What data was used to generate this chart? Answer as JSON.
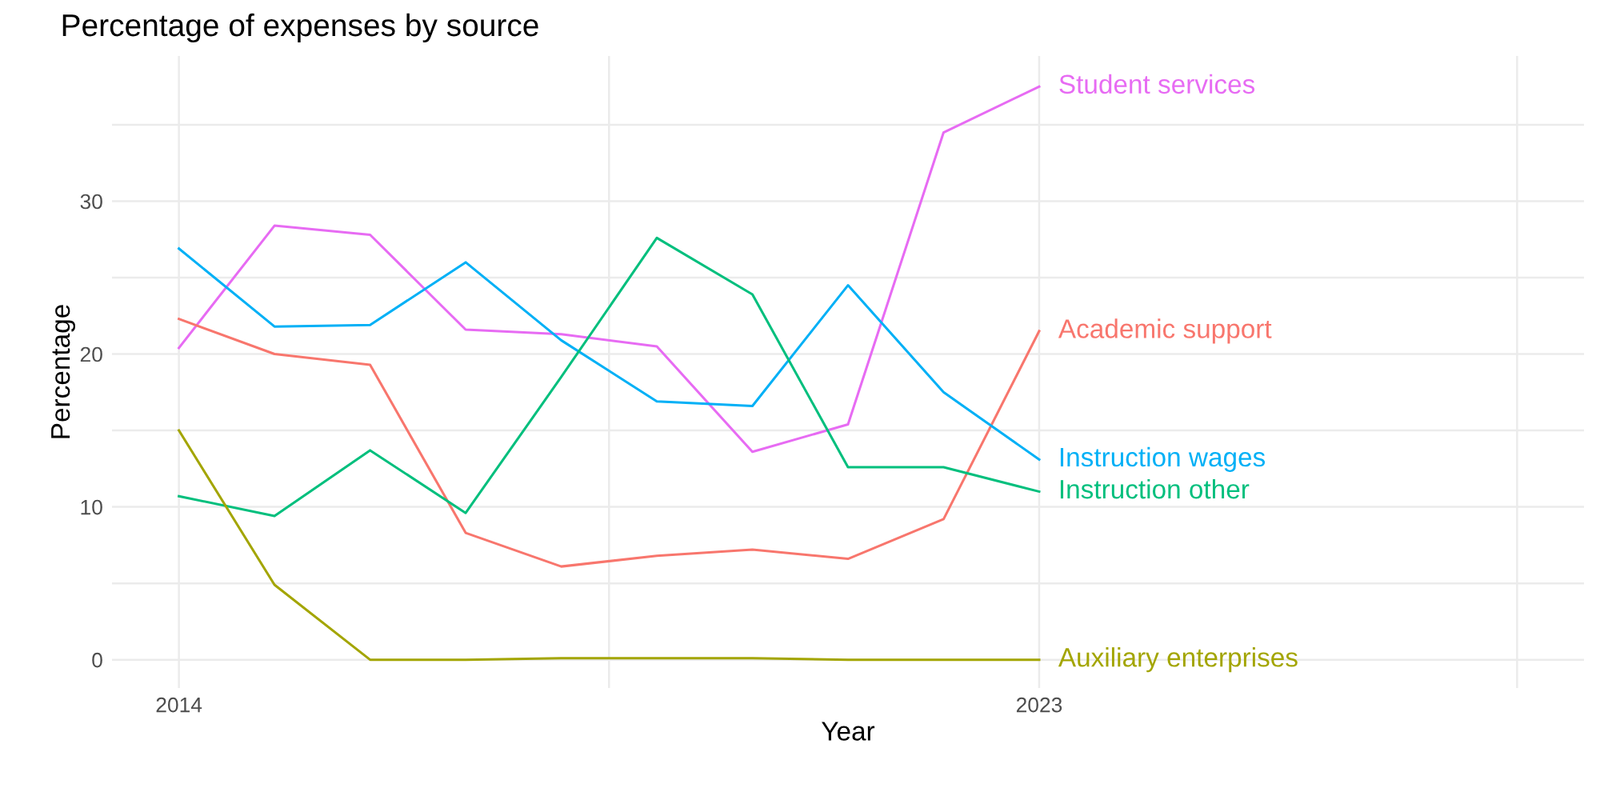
{
  "chart_data": {
    "type": "line",
    "title": "Percentage of expenses by source",
    "xlabel": "Year",
    "ylabel": "Percentage",
    "x": [
      2014,
      2015,
      2016,
      2017,
      2018,
      2019,
      2020,
      2021,
      2022,
      2023
    ],
    "series": [
      {
        "name": "Student services",
        "color": "#e76bf3",
        "values": [
          20.4,
          28.4,
          27.8,
          21.6,
          21.3,
          20.5,
          13.6,
          15.4,
          34.5,
          37.5
        ]
      },
      {
        "name": "Academic support",
        "color": "#f8766d",
        "values": [
          22.3,
          20.0,
          19.3,
          8.3,
          6.1,
          6.8,
          7.2,
          6.6,
          9.2,
          21.5
        ]
      },
      {
        "name": "Instruction wages",
        "color": "#00b0f6",
        "values": [
          26.9,
          21.8,
          21.9,
          26.0,
          20.9,
          16.9,
          16.6,
          24.5,
          17.5,
          13.1
        ]
      },
      {
        "name": "Instruction other",
        "color": "#00bf7d",
        "values": [
          10.7,
          9.4,
          13.7,
          9.6,
          18.5,
          27.6,
          23.9,
          12.6,
          12.6,
          11.0
        ]
      },
      {
        "name": "Auxiliary enterprises",
        "color": "#a3a500",
        "values": [
          15.0,
          4.9,
          0,
          0,
          0.1,
          0.1,
          0.1,
          0,
          0,
          0
        ]
      }
    ],
    "xlim": [
      2013.3,
      2028.7
    ],
    "xticks": [
      2014,
      {
        "value": 2018.5,
        "label": null
      },
      2023,
      {
        "value": 2028,
        "label": null
      }
    ],
    "ylim": [
      -1.85,
      39.5
    ],
    "yticks": [
      0,
      {
        "value": 5,
        "label": null
      },
      10,
      {
        "value": 15,
        "label": null
      },
      20,
      {
        "value": 25,
        "label": null
      },
      30,
      {
        "value": 35,
        "label": null
      }
    ],
    "grid": true,
    "legend": false,
    "line_style": "solid",
    "marker": "none"
  }
}
